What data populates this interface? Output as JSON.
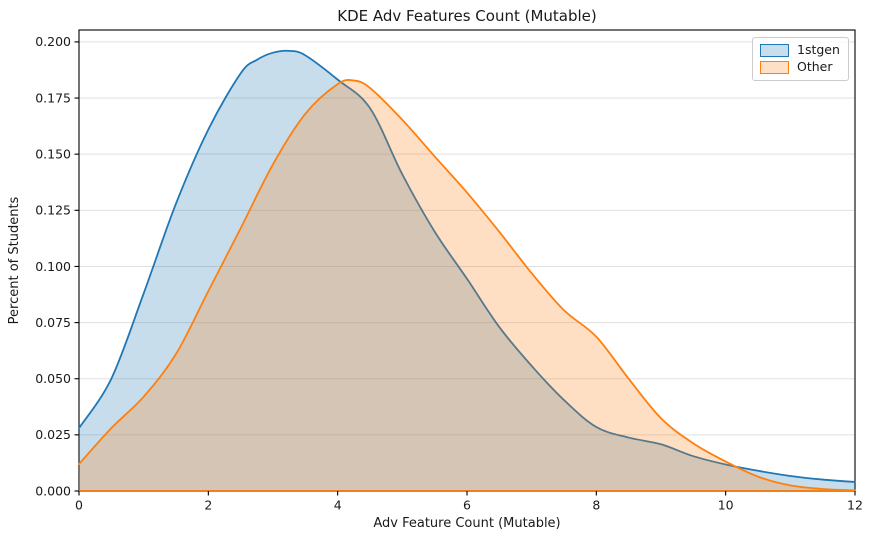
{
  "chart_data": {
    "type": "area",
    "subtype": "kde",
    "title": "KDE Adv Features Count (Mutable)",
    "xlabel": "Adv Feature Count (Mutable)",
    "ylabel": "Percent of Students",
    "xlim": [
      0,
      12
    ],
    "ylim": [
      0,
      0.2053
    ],
    "grid": "horizontal",
    "grid_color": "#e0e0e0",
    "spine_color": "#000000",
    "xticks": [
      0,
      2,
      4,
      6,
      8,
      10,
      12
    ],
    "xtick_labels": [
      "0",
      "2",
      "4",
      "6",
      "8",
      "10",
      "12"
    ],
    "yticks": [
      0.0,
      0.025,
      0.05,
      0.075,
      0.1,
      0.125,
      0.15,
      0.175,
      0.2
    ],
    "ytick_labels": [
      "0.000",
      "0.025",
      "0.050",
      "0.075",
      "0.100",
      "0.125",
      "0.150",
      "0.175",
      "0.200"
    ],
    "legend": {
      "position": "upper right",
      "entries": [
        {
          "label": "1stgen",
          "color": "#1f77b4",
          "fill": "#c8ddee"
        },
        {
          "label": "Other",
          "color": "#ff7f0e",
          "fill": "#fee0c6"
        }
      ]
    },
    "series": [
      {
        "name": "1stgen",
        "color": "#1f77b4",
        "fill_opacity": 0.25,
        "x": [
          0,
          0.5,
          1,
          1.5,
          2,
          2.5,
          2.75,
          3,
          3.25,
          3.5,
          4,
          4.5,
          5,
          5.5,
          6,
          6.5,
          7,
          7.5,
          8,
          8.5,
          9,
          9.5,
          10,
          10.5,
          11,
          11.5,
          12
        ],
        "y": [
          0.028,
          0.05,
          0.088,
          0.128,
          0.161,
          0.186,
          0.192,
          0.1952,
          0.196,
          0.194,
          0.1832,
          0.1705,
          0.141,
          0.1155,
          0.0945,
          0.073,
          0.0557,
          0.0405,
          0.0285,
          0.0238,
          0.0208,
          0.0155,
          0.0118,
          0.009,
          0.0067,
          0.0051,
          0.004
        ]
      },
      {
        "name": "Other",
        "color": "#ff7f0e",
        "fill_opacity": 0.25,
        "x": [
          0,
          0.5,
          1,
          1.5,
          2,
          2.5,
          3,
          3.5,
          4,
          4.25,
          4.5,
          5,
          5.5,
          6,
          6.5,
          7,
          7.5,
          8,
          8.5,
          9,
          9.5,
          10,
          10.5,
          11,
          11.5,
          12
        ],
        "y": [
          0.012,
          0.028,
          0.042,
          0.061,
          0.089,
          0.117,
          0.1455,
          0.168,
          0.1812,
          0.1828,
          0.1795,
          0.1653,
          0.149,
          0.1329,
          0.1154,
          0.097,
          0.0805,
          0.0687,
          0.05,
          0.0324,
          0.0212,
          0.0131,
          0.0064,
          0.0025,
          0.0009,
          0.0003
        ]
      }
    ]
  }
}
